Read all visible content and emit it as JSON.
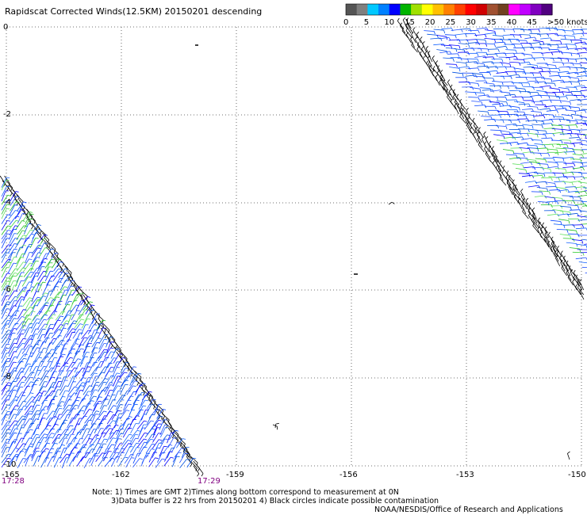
{
  "header": {
    "title": "Rapidscat Corrected Winds(12.5KM) 20150201 descending"
  },
  "color_scale": {
    "labels": [
      "0",
      "5",
      "10",
      "15",
      "20",
      "25",
      "30",
      "35",
      "40",
      "45",
      ">50 knots"
    ],
    "colors": [
      "#555555",
      "#7f7f7f",
      "#00c8ff",
      "#0080ff",
      "#0000ff",
      "#00b400",
      "#a0e000",
      "#ffff00",
      "#ffc000",
      "#ff8000",
      "#ff4000",
      "#ff0000",
      "#d00000",
      "#a05030",
      "#704020",
      "#ff00ff",
      "#c000ff",
      "#8000c0",
      "#500080"
    ]
  },
  "axes": {
    "lat_labels": [
      "0",
      "-2",
      "-4",
      "-6",
      "-8",
      "-10"
    ],
    "lon_labels": [
      "-165",
      "-162",
      "-159",
      "-156",
      "-153",
      "-150"
    ]
  },
  "times": {
    "start": "17:28",
    "end": "17:29"
  },
  "notes": {
    "line1": "Note: 1) Times are GMT 2)Times along bottom correspond to measurement at 0N",
    "line2": "3)Data buffer is 22 hrs from 20150201 4) Black circles indicate possible contamination",
    "line3": "NOAA/NESDIS/Office of Research and Applications"
  }
}
